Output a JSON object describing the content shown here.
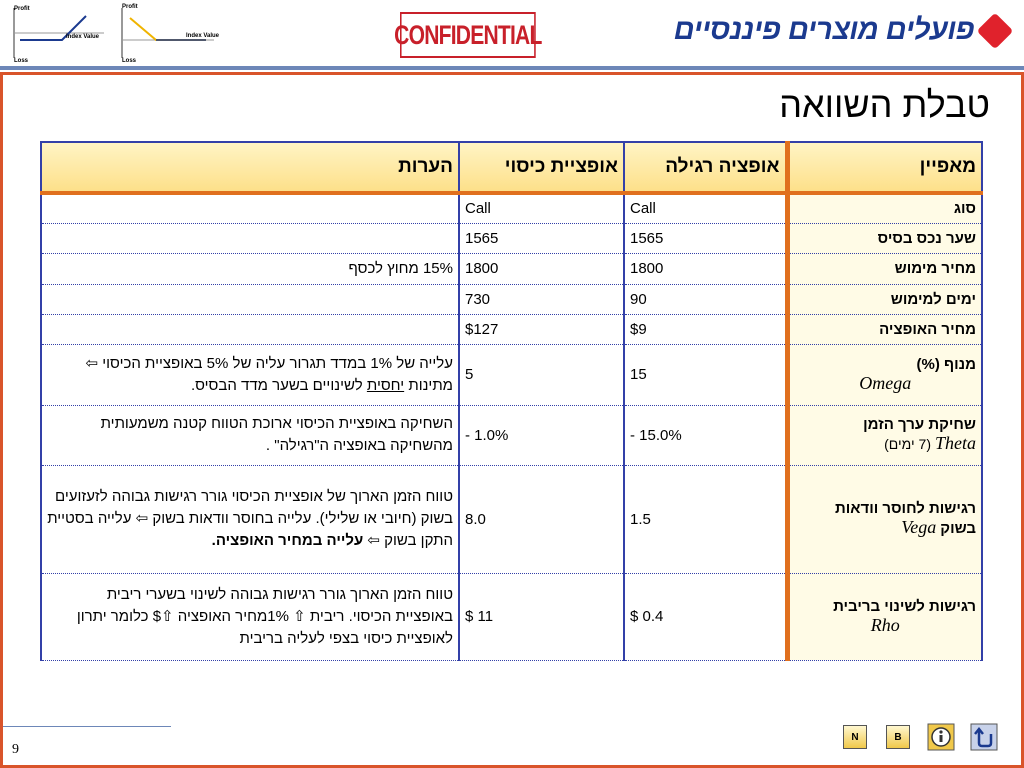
{
  "header": {
    "logo": "פועלים מוצרים פיננסיים",
    "stamp": "CONFIDENTIAL",
    "chart_labels": {
      "profit": "Profit",
      "loss": "Loss",
      "index": "Index Value"
    }
  },
  "title": "טבלת השוואה",
  "table": {
    "columns": [
      "מאפיין",
      "אופציה רגילה",
      "אופציית כיסוי",
      "הערות"
    ],
    "rows": [
      [
        [
          "סוג"
        ],
        [
          "Call"
        ],
        [
          "Call"
        ],
        null
      ],
      [
        [
          "שער נכס בסיס"
        ],
        [
          "1565"
        ],
        [
          "1565"
        ],
        null
      ],
      [
        [
          "מחיר מימוש"
        ],
        [
          "1800"
        ],
        [
          "1800"
        ],
        [
          "15% מחוץ לכסף"
        ]
      ],
      [
        [
          "ימים למימוש"
        ],
        [
          "90"
        ],
        [
          "730"
        ],
        null
      ],
      [
        [
          "מחיר האופציה"
        ],
        [
          "$9"
        ],
        [
          "$127"
        ],
        null
      ],
      [
        [
          "מנוף (%)",
          {
            "text": "Omega",
            "style": "term-line"
          }
        ],
        [
          "15"
        ],
        [
          "5"
        ],
        [
          "עלייה של 1% במדד תגרור עליה של 5% באופציית הכיסוי ⇦ מתינות ",
          {
            "text": "יחסית",
            "style": "underline"
          },
          " לשינויים בשער מדד הבסיס."
        ]
      ],
      [
        [
          "שחיקת ערך הזמן",
          {
            "text": "Theta",
            "style": "term-line"
          },
          {
            "text": "(7 ימים)",
            "style": "plain"
          }
        ],
        [
          "- 15.0%"
        ],
        [
          "- 1.0%"
        ],
        [
          "השחיקה באופציית הכיסוי ארוכת הטווח קטנה משמעותית מהשחיקה באופציה ה\"רגילה\" ."
        ]
      ],
      [
        [
          "רגישות לחוסר וודאות בשוק",
          {
            "text": "Vega",
            "style": "term"
          }
        ],
        [
          "1.5"
        ],
        [
          "8.0"
        ],
        [
          "טווח הזמן הארוך של אופציית הכיסוי גורר רגישות גבוהה לזעזועים בשוק (חיובי או שלילי). עלייה בחוסר וודאות בשוק ⇦ עלייה בסטיית התקן בשוק ⇦ ",
          {
            "text": "עלייה במחיר האופציה.",
            "style": "bold"
          }
        ]
      ],
      [
        [
          "רגישות לשינוי בריבית",
          {
            "text": "Rho",
            "style": "term-line"
          }
        ],
        [
          "$ 0.4"
        ],
        [
          "$ 11"
        ],
        [
          "טווח הזמן הארוך גורר רגישות גבוהה לשינוי בשערי ריבית באופציית הכיסוי. ריבית ⇧ 1%מחיר האופציה ⇧$ כלומר יתרון לאופציית כיסוי בצפי לעליה בריבית"
        ]
      ]
    ]
  },
  "footer": {
    "page": "9",
    "buttons": [
      "N",
      "B"
    ]
  }
}
